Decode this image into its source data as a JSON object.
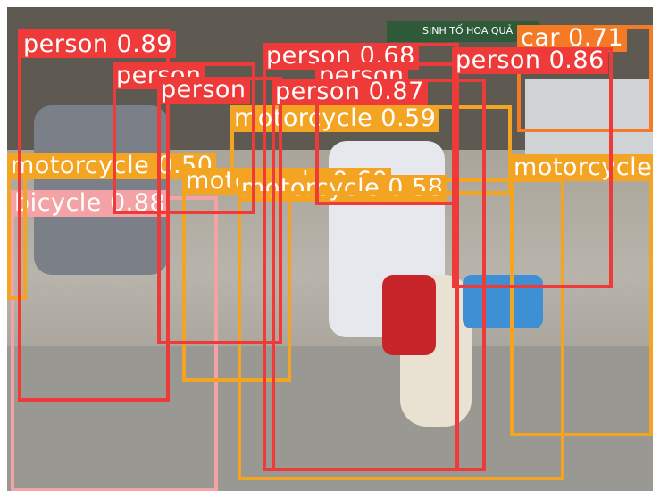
{
  "colors": {
    "person": "#ef3a3a",
    "motorcycle": "#f4a423",
    "bicycle": "#f3a3a6",
    "car": "#f47a26"
  },
  "detections": [
    {
      "class": "bicycle",
      "score": "0.88",
      "label": "bicycle 0.88"
    },
    {
      "class": "motorcycle",
      "score": "0.50",
      "label": "motorcycle 0.50"
    },
    {
      "class": "motorcycle",
      "score": "0.60",
      "label": "motorcycle 0.60"
    },
    {
      "class": "motorcycle",
      "score": "0.58",
      "label": "motorcycle 0.58"
    },
    {
      "class": "motorcycle",
      "score": "0.59",
      "label": "motorcycle 0.59"
    },
    {
      "class": "motorcycle",
      "score": "",
      "label": "motorcycle"
    },
    {
      "class": "car",
      "score": "0.71",
      "label": "car 0.71"
    },
    {
      "class": "person",
      "score": "0.89",
      "label": "person 0.89"
    },
    {
      "class": "person",
      "score": "",
      "label": "person"
    },
    {
      "class": "person",
      "score": "",
      "label": "person"
    },
    {
      "class": "person",
      "score": "0.68",
      "label": "person 0.68"
    },
    {
      "class": "person",
      "score": "",
      "label": "person"
    },
    {
      "class": "person",
      "score": "0.86",
      "label": "person 0.86"
    },
    {
      "class": "person",
      "score": "0.87",
      "label": "person 0.87"
    }
  ],
  "scene": {
    "signs": [
      "SINH TỐ HOA QUẢ"
    ]
  }
}
